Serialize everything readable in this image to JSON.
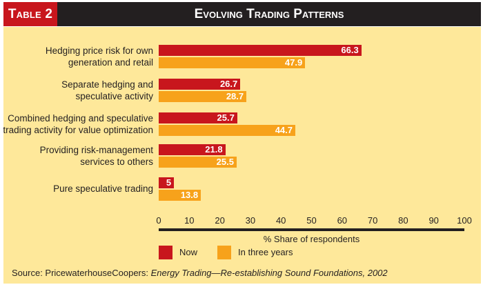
{
  "header": {
    "tag": "Table 2",
    "title": "Evolving Trading Patterns"
  },
  "colors": {
    "now": "#c8161d",
    "future": "#f7a21b",
    "background": "#fee89a",
    "header": "#231f20"
  },
  "chart_data": {
    "type": "bar",
    "orientation": "horizontal",
    "title": "Evolving Trading Patterns",
    "categories": [
      [
        "Hedging price risk for own",
        "generation and retail"
      ],
      [
        "Separate hedging and",
        "speculative activity"
      ],
      [
        "Combined hedging and speculative",
        "trading activity for value optimization"
      ],
      [
        "Providing risk-management",
        "services to others"
      ],
      [
        "Pure speculative trading"
      ]
    ],
    "series": [
      {
        "name": "Now",
        "values": [
          66.3,
          26.7,
          25.7,
          21.8,
          5
        ],
        "labels": [
          "66.3",
          "26.7",
          "25.7",
          "21.8",
          "5"
        ]
      },
      {
        "name": "In three years",
        "values": [
          47.9,
          28.7,
          44.7,
          25.5,
          13.8
        ],
        "labels": [
          "47.9",
          "28.7",
          "44.7",
          "25.5",
          "13.8"
        ]
      }
    ],
    "xlabel": "% Share of respondents",
    "xlim": [
      0,
      100
    ],
    "xticks": [
      "0",
      "10",
      "20",
      "30",
      "40",
      "50",
      "60",
      "70",
      "80",
      "90",
      "100"
    ],
    "legend": "bottom-left"
  },
  "source": {
    "prefix": "Source: PricewaterhouseCoopers: ",
    "title": "Energy Trading—Re-establishing Sound Foundations, 2002"
  }
}
